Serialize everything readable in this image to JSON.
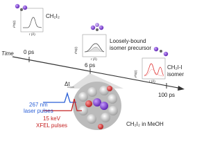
{
  "time": "Time",
  "timepoints": [
    {
      "label": "0 ps"
    },
    {
      "label": "6 ps"
    },
    {
      "label": "100 ps"
    }
  ],
  "species": [
    {
      "lines": [
        "CH₂I₂"
      ]
    },
    {
      "lines": [
        "Loosely-bound",
        "isomer precursor"
      ]
    },
    {
      "lines": [
        "CH₂I-I",
        "isomer"
      ]
    }
  ],
  "insets": [
    {
      "y_label": "r²S(r)",
      "x_label": "r (Å)"
    },
    {
      "y_label": "r²S(r)",
      "x_label": "r (Å)"
    },
    {
      "y_label": "r²S(r)",
      "x_label": "r (Å)"
    }
  ],
  "laser": [
    "267 nm",
    "laser pulses"
  ],
  "xfel": [
    "15 keV",
    "XFEL pulses"
  ],
  "delay": "Δt",
  "sample": "CH₂I₂ in MeOH"
}
